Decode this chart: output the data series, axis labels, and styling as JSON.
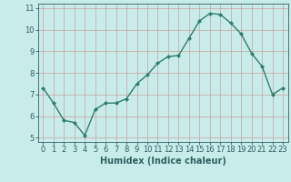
{
  "x": [
    0,
    1,
    2,
    3,
    4,
    5,
    6,
    7,
    8,
    9,
    10,
    11,
    12,
    13,
    14,
    15,
    16,
    17,
    18,
    19,
    20,
    21,
    22,
    23
  ],
  "y": [
    7.3,
    6.6,
    5.8,
    5.7,
    5.1,
    6.3,
    6.6,
    6.6,
    6.8,
    7.5,
    7.9,
    8.45,
    8.75,
    8.8,
    9.6,
    10.4,
    10.75,
    10.7,
    10.3,
    9.8,
    8.9,
    8.3,
    7.0,
    7.3
  ],
  "line_color": "#2e7d6e",
  "marker": "D",
  "marker_size": 2,
  "bg_color": "#c8ecea",
  "grid_color": "#c8a0a0",
  "xlabel": "Humidex (Indice chaleur)",
  "xlim": [
    -0.5,
    23.5
  ],
  "ylim": [
    4.8,
    11.2
  ],
  "yticks": [
    5,
    6,
    7,
    8,
    9,
    10,
    11
  ],
  "xticks": [
    0,
    1,
    2,
    3,
    4,
    5,
    6,
    7,
    8,
    9,
    10,
    11,
    12,
    13,
    14,
    15,
    16,
    17,
    18,
    19,
    20,
    21,
    22,
    23
  ],
  "line_width": 1.0,
  "font_color": "#2e6060",
  "tick_fontsize": 6,
  "xlabel_fontsize": 7
}
